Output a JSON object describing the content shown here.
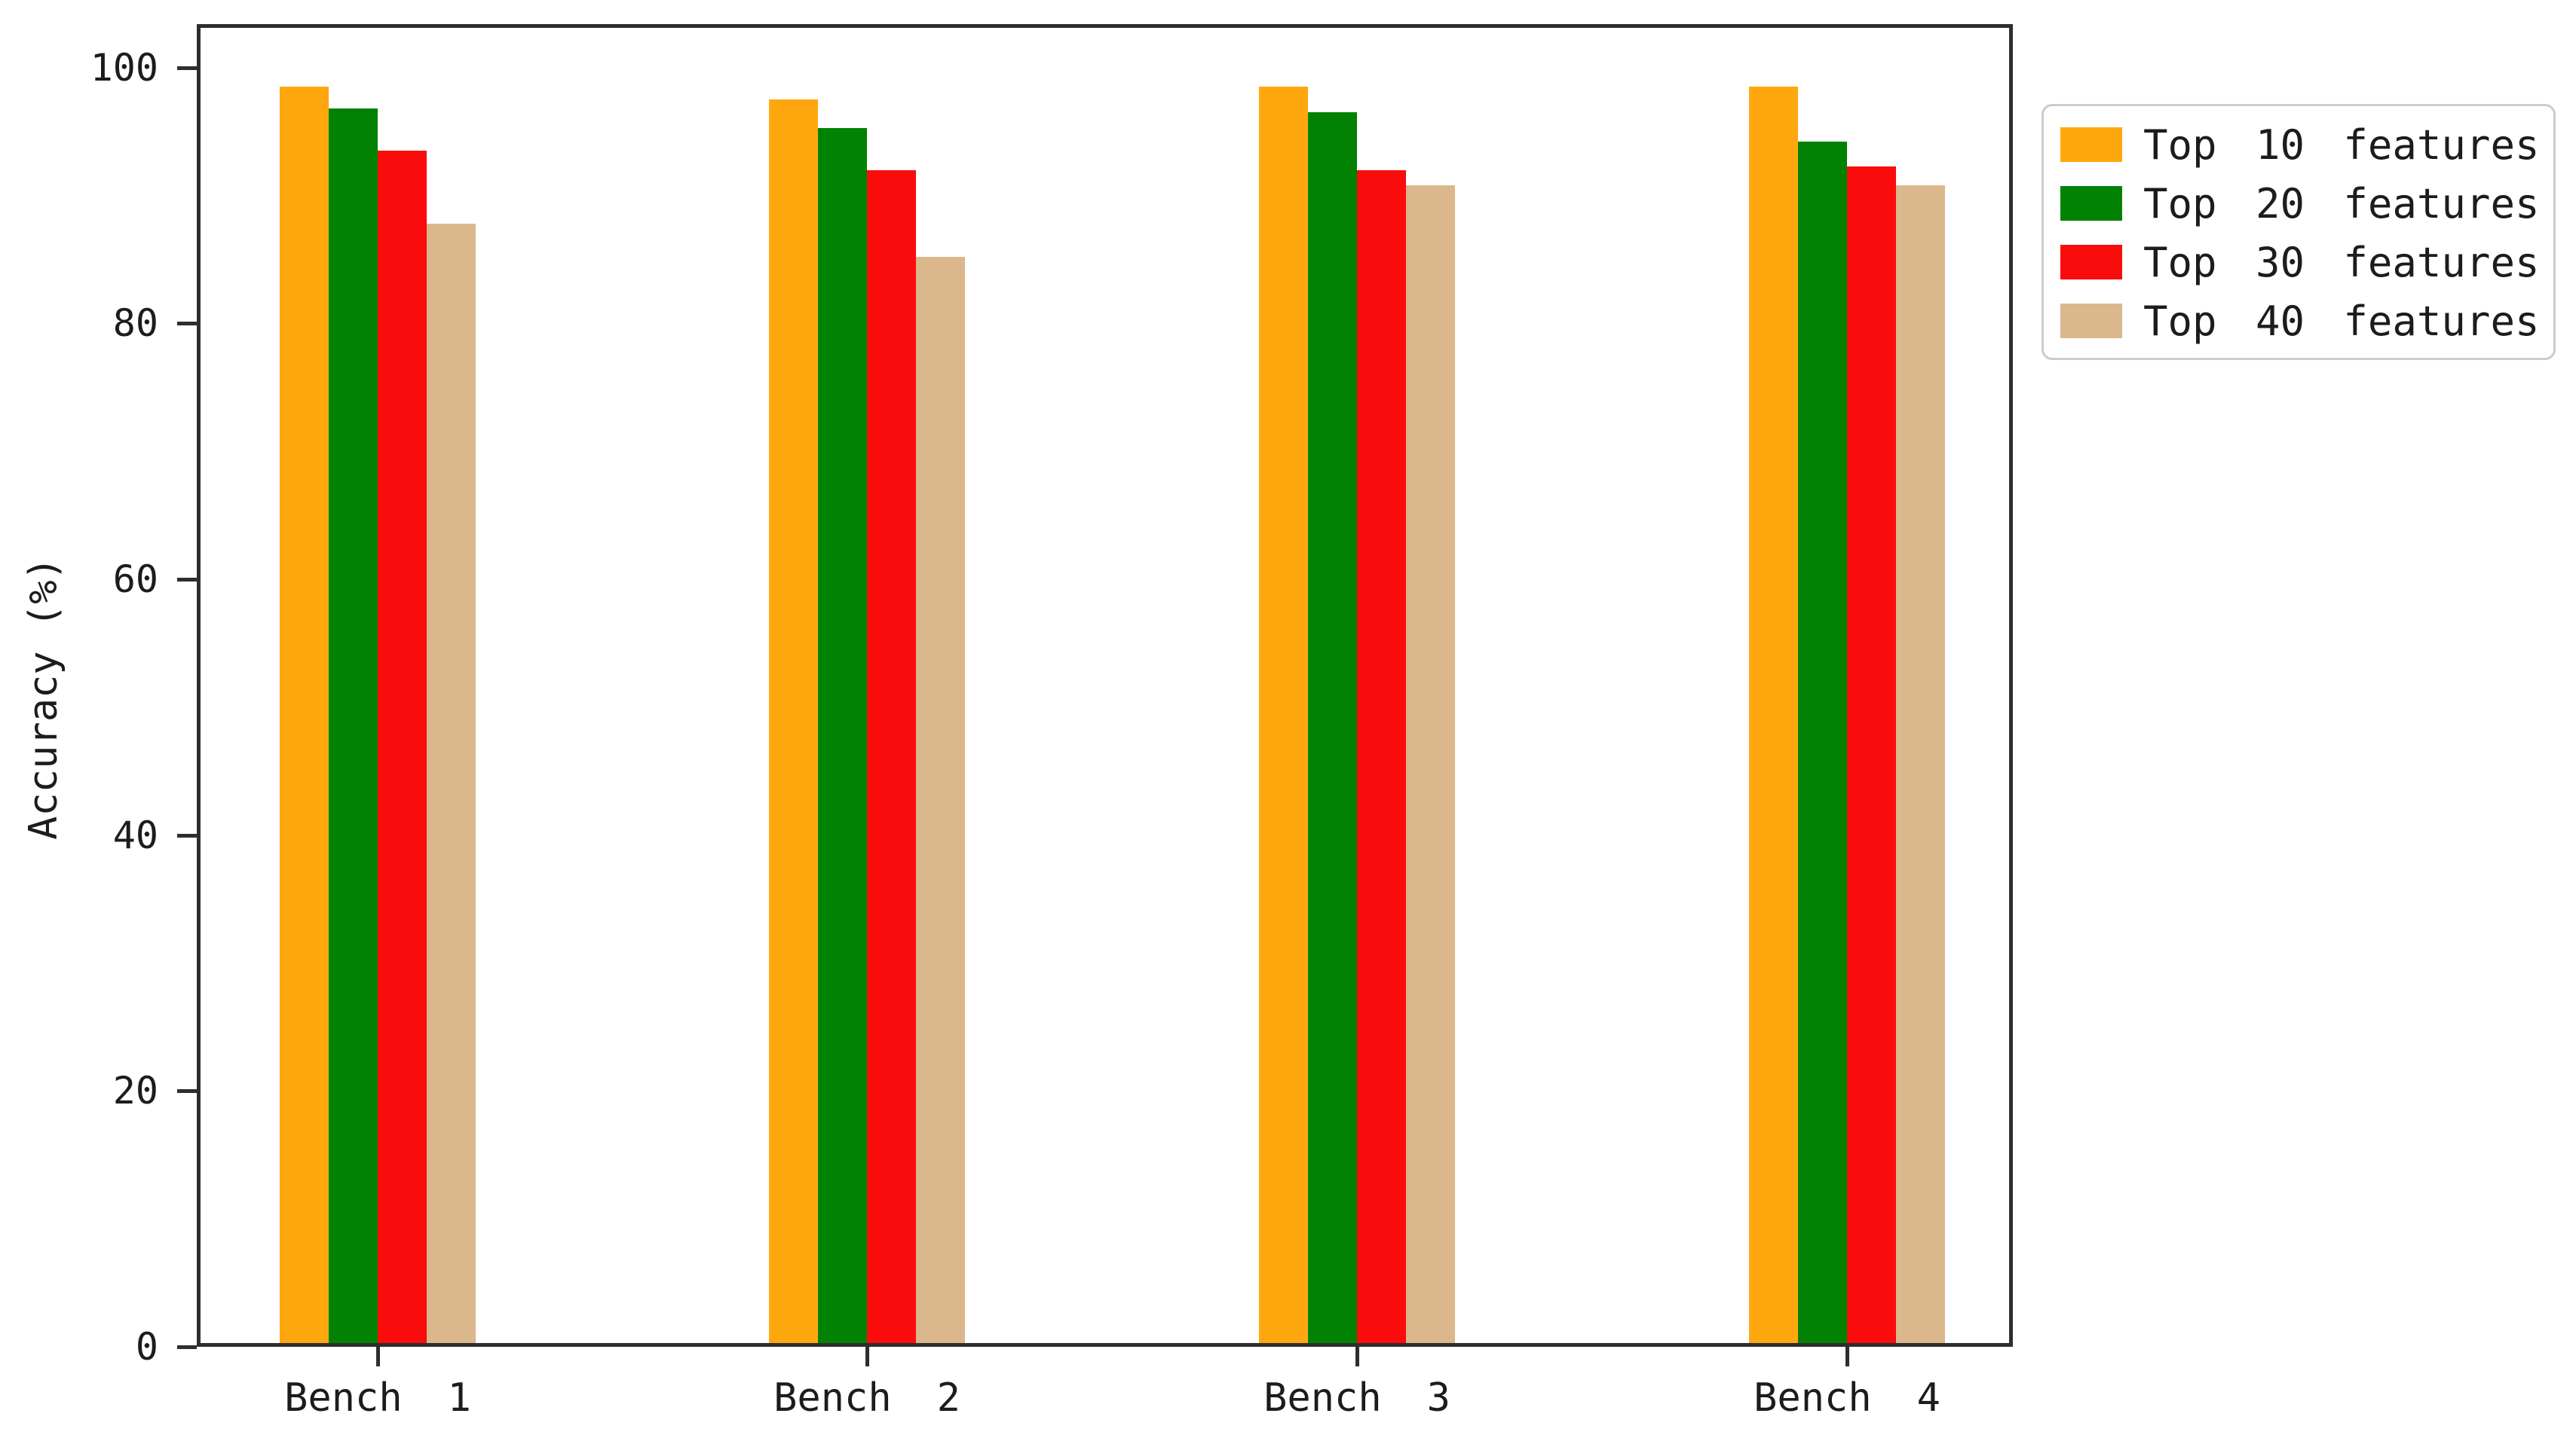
{
  "chart_data": {
    "type": "bar",
    "title": "",
    "categories": [
      "Bench 1",
      "Bench 2",
      "Bench 3",
      "Bench 4"
    ],
    "series": [
      {
        "name": "Top 10 features",
        "color": "#FFA70F",
        "values": [
          98.5,
          97.5,
          98.5,
          98.5
        ]
      },
      {
        "name": "Top 20 features",
        "color": "#028202",
        "values": [
          96.8,
          95.3,
          96.5,
          94.2
        ]
      },
      {
        "name": "Top 30 features",
        "color": "#FB0C0C",
        "values": [
          93.5,
          92.0,
          92.0,
          92.3
        ]
      },
      {
        "name": "Top 40 features",
        "color": "#DBB78C",
        "values": [
          87.8,
          85.2,
          90.8,
          90.8
        ]
      }
    ],
    "xlabel": "",
    "ylabel": "Accuracy (%)",
    "yticks": [
      0,
      20,
      40,
      60,
      80,
      100
    ],
    "ylim": [
      0,
      103.4
    ],
    "grid": false,
    "legend_position": "outside-right-top",
    "colors": {
      "spine": "#2e2e2e",
      "text": "#1c1c1c",
      "legend_border": "#cccccc",
      "background": "#ffffff"
    }
  }
}
